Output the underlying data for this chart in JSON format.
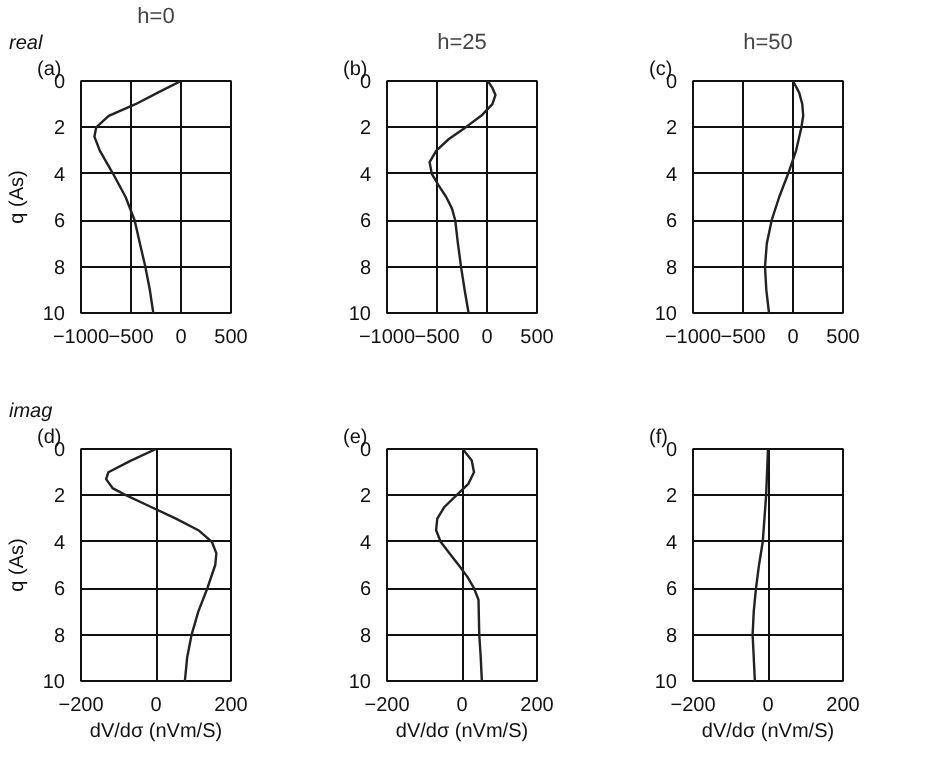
{
  "chart_data": [
    {
      "type": "line",
      "title": "h=0",
      "ylabel": "q (As)",
      "annotations": [
        "real",
        "(a)"
      ],
      "xlim": [
        -1000,
        500
      ],
      "xticks": [
        -1000,
        -500,
        0,
        500
      ],
      "ylim": [
        10,
        0
      ],
      "yticks": [
        0,
        2,
        4,
        6,
        8,
        10
      ],
      "grid": true,
      "series": [
        {
          "color": "#222222",
          "x": [
            0,
            -232,
            -455,
            -723,
            -848,
            -866,
            -812,
            -679,
            -554,
            -464,
            -411,
            -357,
            -312,
            -277
          ],
          "values": [
            0,
            0.5,
            1,
            1.5,
            2,
            2.4,
            3,
            4,
            5,
            6,
            7,
            8,
            9,
            10
          ]
        }
      ]
    },
    {
      "type": "line",
      "title": "h=25",
      "annotations": [
        "(b)"
      ],
      "xlim": [
        -1000,
        500
      ],
      "xticks": [
        -1000,
        -500,
        0,
        500
      ],
      "ylim": [
        10,
        0
      ],
      "yticks": [
        0,
        2,
        4,
        6,
        8,
        10
      ],
      "grid": true,
      "series": [
        {
          "color": "#222222",
          "x": [
            9,
            54,
            85,
            54,
            -58,
            -215,
            -381,
            -507,
            -574,
            -552,
            -484,
            -408,
            -350,
            -318,
            -291,
            -260,
            -224,
            -184
          ],
          "values": [
            0,
            0.3,
            0.6,
            1,
            1.5,
            2,
            2.5,
            3,
            3.5,
            4,
            4.5,
            5,
            5.5,
            6,
            7,
            8,
            9,
            10
          ]
        }
      ]
    },
    {
      "type": "line",
      "title": "h=50",
      "annotations": [
        "(c)"
      ],
      "xlim": [
        -1000,
        500
      ],
      "xticks": [
        -1000,
        -500,
        0,
        500
      ],
      "ylim": [
        10,
        0
      ],
      "yticks": [
        0,
        2,
        4,
        6,
        8,
        10
      ],
      "grid": true,
      "series": [
        {
          "color": "#222222",
          "x": [
            0,
            62,
            93,
            102,
            84,
            31,
            -49,
            -138,
            -213,
            -262,
            -280,
            -267,
            -240
          ],
          "values": [
            0,
            0.5,
            1,
            1.5,
            2,
            3,
            4,
            5,
            6,
            7,
            8,
            9,
            10
          ]
        }
      ]
    },
    {
      "type": "line",
      "xlabel": "dV/dσ (nVm/S)",
      "ylabel": "q (As)",
      "annotations": [
        "imag",
        "(d)"
      ],
      "xlim": [
        -200,
        200
      ],
      "xticks": [
        -200,
        0,
        200
      ],
      "ylim": [
        10,
        0
      ],
      "yticks": [
        0,
        2,
        4,
        6,
        8,
        10
      ],
      "grid": true,
      "series": [
        {
          "color": "#222222",
          "x": [
            0,
            -67,
            -127,
            -133,
            -115,
            -79,
            -13,
            53,
            113,
            149,
            161,
            158,
            137,
            113,
            95,
            83,
            77
          ],
          "values": [
            0,
            0.5,
            1,
            1.3,
            1.7,
            2,
            2.5,
            3,
            3.5,
            4,
            4.5,
            5,
            6,
            7,
            8,
            9,
            10
          ]
        }
      ]
    },
    {
      "type": "line",
      "xlabel": "dV/dσ (nVm/S)",
      "annotations": [
        "(e)"
      ],
      "xlim": [
        -200,
        200
      ],
      "xticks": [
        -200,
        0,
        200
      ],
      "ylim": [
        10,
        0
      ],
      "yticks": [
        0,
        2,
        4,
        6,
        8,
        10
      ],
      "grid": true,
      "series": [
        {
          "color": "#222222",
          "x": [
            2,
            26,
            32,
            17,
            -15,
            -47,
            -66,
            -69,
            -57,
            -33,
            -9,
            14,
            32,
            44,
            46,
            50,
            53
          ],
          "values": [
            0,
            0.5,
            1,
            1.5,
            2,
            2.5,
            3,
            3.5,
            4,
            4.5,
            5,
            5.5,
            6,
            6.5,
            8,
            9,
            10
          ]
        }
      ]
    },
    {
      "type": "line",
      "xlabel": "dV/dσ (nVm/S)",
      "annotations": [
        "(f)"
      ],
      "xlim": [
        -200,
        200
      ],
      "xticks": [
        -200,
        0,
        200
      ],
      "ylim": [
        10,
        0
      ],
      "yticks": [
        0,
        2,
        4,
        6,
        8,
        10
      ],
      "grid": true,
      "series": [
        {
          "color": "#222222",
          "x": [
            0,
            -5,
            -14,
            -24,
            -32,
            -38,
            -41,
            -38,
            -35
          ],
          "values": [
            0,
            2,
            4,
            5,
            6,
            7,
            8,
            9,
            10
          ]
        }
      ]
    }
  ]
}
